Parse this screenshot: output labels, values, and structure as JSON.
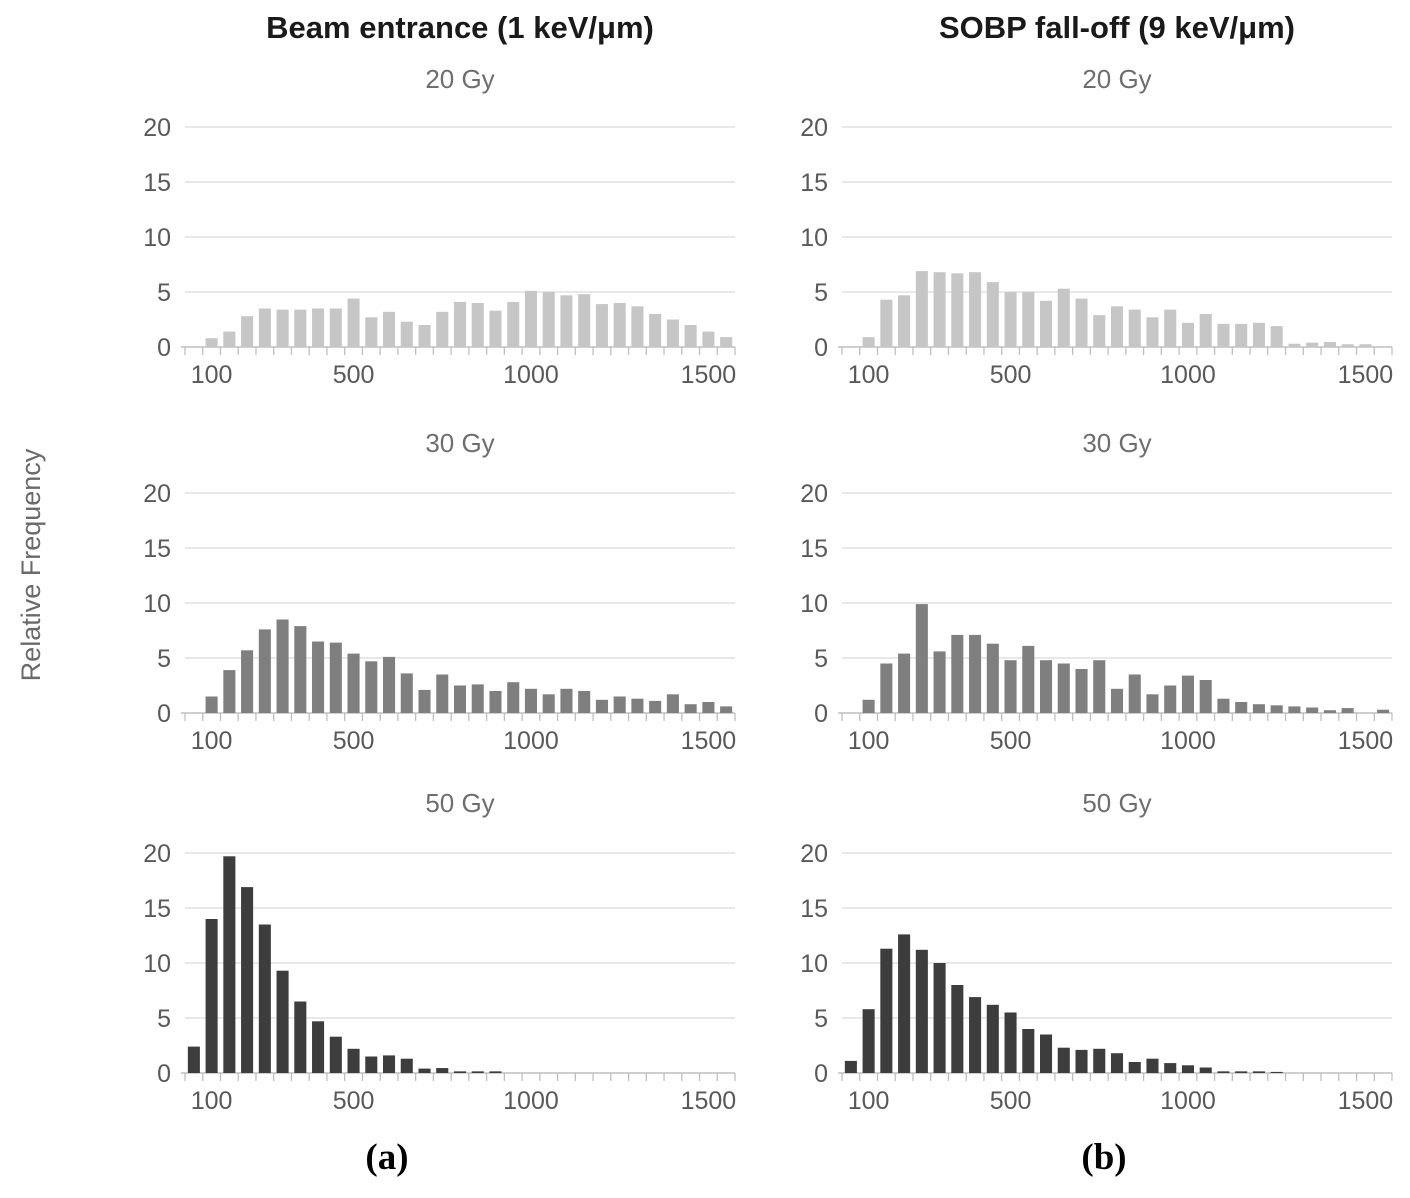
{
  "figure": {
    "ylabel": "Relative Frequency",
    "caption_a": "(a)",
    "caption_b": "(b)",
    "column_titles": {
      "left": "Beam entrance (1 keV/μm)",
      "right": "SOBP fall-off (9 keV/μm)"
    }
  },
  "style": {
    "bar_color_20gy": "#c6c6c6",
    "bar_color_30gy": "#7f7f7f",
    "bar_color_50gy": "#3d3d3d",
    "tick_text_color": "#595959",
    "grid_color": "#d9d9d9",
    "axis_color": "#bfbfbf"
  },
  "chart_data": [
    {
      "id": "histogram-beam-entrance-20gy",
      "type": "bar",
      "column": "Beam entrance (1 keV/μm)",
      "title": "20 Gy",
      "ylabel": "Relative Frequency",
      "color_key": "bar_color_20gy",
      "xlim": [
        25,
        1575
      ],
      "ylim": [
        0,
        20
      ],
      "xticks": [
        100,
        500,
        1000,
        1500
      ],
      "yticks": [
        0,
        5,
        10,
        15,
        20
      ],
      "x_start": 100,
      "x_step": 50,
      "values": [
        0.8,
        1.4,
        2.8,
        3.5,
        3.4,
        3.4,
        3.5,
        3.5,
        4.4,
        2.7,
        3.2,
        2.3,
        2.0,
        3.2,
        4.1,
        4.0,
        3.3,
        4.1,
        5.1,
        5.0,
        4.7,
        4.8,
        3.9,
        4.0,
        3.7,
        3.0,
        2.5,
        2.0,
        1.4,
        0.9
      ]
    },
    {
      "id": "histogram-sobp-fall-off-20gy",
      "type": "bar",
      "column": "SOBP fall-off (9 keV/μm)",
      "title": "20 Gy",
      "ylabel": "Relative Frequency",
      "color_key": "bar_color_20gy",
      "xlim": [
        25,
        1575
      ],
      "ylim": [
        0,
        20
      ],
      "xticks": [
        100,
        500,
        1000,
        1500
      ],
      "yticks": [
        0,
        5,
        10,
        15,
        20
      ],
      "x_start": 100,
      "x_step": 50,
      "values": [
        0.9,
        4.3,
        4.7,
        6.9,
        6.8,
        6.7,
        6.8,
        5.9,
        5.0,
        5.0,
        4.2,
        5.3,
        4.4,
        2.9,
        3.7,
        3.4,
        2.7,
        3.4,
        2.2,
        3.0,
        2.1,
        2.1,
        2.2,
        1.9,
        0.3,
        0.4,
        0.45,
        0.25,
        0.25,
        0
      ]
    },
    {
      "id": "histogram-beam-entrance-30gy",
      "type": "bar",
      "column": "Beam entrance (1 keV/μm)",
      "title": "30 Gy",
      "ylabel": "Relative Frequency",
      "color_key": "bar_color_30gy",
      "xlim": [
        25,
        1575
      ],
      "ylim": [
        0,
        20
      ],
      "xticks": [
        100,
        500,
        1000,
        1500
      ],
      "yticks": [
        0,
        5,
        10,
        15,
        20
      ],
      "x_start": 100,
      "x_step": 50,
      "values": [
        1.5,
        3.9,
        5.7,
        7.6,
        8.5,
        7.9,
        6.5,
        6.4,
        5.4,
        4.7,
        5.1,
        3.6,
        2.1,
        3.5,
        2.5,
        2.6,
        2.0,
        2.8,
        2.2,
        1.7,
        2.2,
        2.0,
        1.2,
        1.5,
        1.3,
        1.1,
        1.7,
        0.8,
        1.0,
        0.6
      ]
    },
    {
      "id": "histogram-sobp-fall-off-30gy",
      "type": "bar",
      "column": "SOBP fall-off (9 keV/μm)",
      "title": "30 Gy",
      "ylabel": "Relative Frequency",
      "color_key": "bar_color_30gy",
      "xlim": [
        25,
        1575
      ],
      "ylim": [
        0,
        20
      ],
      "xticks": [
        100,
        500,
        1000,
        1500
      ],
      "yticks": [
        0,
        5,
        10,
        15,
        20
      ],
      "x_start": 100,
      "x_step": 50,
      "values": [
        1.2,
        4.5,
        5.4,
        9.9,
        5.6,
        7.1,
        7.1,
        6.3,
        4.8,
        6.1,
        4.8,
        4.5,
        4.0,
        4.8,
        2.2,
        3.5,
        1.7,
        2.5,
        3.4,
        3.0,
        1.3,
        1.0,
        0.8,
        0.7,
        0.6,
        0.5,
        0.25,
        0.45,
        0,
        0.3
      ]
    },
    {
      "id": "histogram-beam-entrance-50gy",
      "type": "bar",
      "column": "Beam entrance (1 keV/μm)",
      "title": "50 Gy",
      "ylabel": "Relative Frequency",
      "color_key": "bar_color_50gy",
      "xlim": [
        25,
        1575
      ],
      "ylim": [
        0,
        20
      ],
      "xticks": [
        100,
        500,
        1000,
        1500
      ],
      "yticks": [
        0,
        5,
        10,
        15,
        20
      ],
      "x_start": 50,
      "x_step": 50,
      "values": [
        2.4,
        14.0,
        19.7,
        16.9,
        13.5,
        9.3,
        6.5,
        4.7,
        3.3,
        2.2,
        1.5,
        1.6,
        1.3,
        0.4,
        0.45,
        0.15,
        0.15,
        0.15,
        0,
        0,
        0,
        0,
        0,
        0,
        0,
        0,
        0,
        0,
        0,
        0,
        0
      ]
    },
    {
      "id": "histogram-sobp-fall-off-50gy",
      "type": "bar",
      "column": "SOBP fall-off (9 keV/μm)",
      "title": "50 Gy",
      "ylabel": "Relative Frequency",
      "color_key": "bar_color_50gy",
      "xlim": [
        25,
        1575
      ],
      "ylim": [
        0,
        20
      ],
      "xticks": [
        100,
        500,
        1000,
        1500
      ],
      "yticks": [
        0,
        5,
        10,
        15,
        20
      ],
      "x_start": 50,
      "x_step": 50,
      "values": [
        1.1,
        5.8,
        11.3,
        12.6,
        11.2,
        10.0,
        8.0,
        6.9,
        6.2,
        5.5,
        4.0,
        3.5,
        2.3,
        2.1,
        2.2,
        1.8,
        1.0,
        1.3,
        0.9,
        0.7,
        0.5,
        0.15,
        0.15,
        0.15,
        0.1,
        0,
        0,
        0,
        0,
        0,
        0
      ]
    }
  ]
}
